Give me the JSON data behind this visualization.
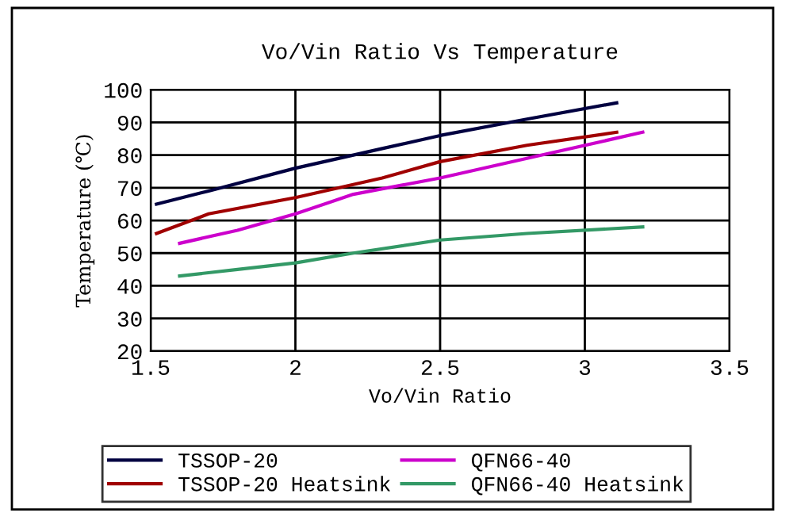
{
  "chart_data": {
    "type": "line",
    "title": "Vo/Vin Ratio Vs Temperature",
    "xlabel": "Vo/Vin Ratio",
    "ylabel": "Temperature (℃)",
    "xlim": [
      1.5,
      3.5
    ],
    "xticks": [
      {
        "value": 1.5,
        "label": "1.5"
      },
      2,
      {
        "value": 2.5,
        "label": "2.5"
      },
      3,
      {
        "value": 3.5,
        "label": "3.5"
      }
    ],
    "ylim": [
      20,
      100
    ],
    "yticks": [
      20,
      30,
      40,
      50,
      60,
      70,
      80,
      90,
      100
    ],
    "grid": true,
    "legend": "bottom",
    "marker": "none",
    "line_style": "solid",
    "series": [
      {
        "name": "TSSOP-20",
        "color": "#000040",
        "x": [
          1.52,
          1.7,
          2.0,
          2.3,
          2.5,
          2.8,
          3.11
        ],
        "values": [
          65,
          69,
          76,
          82,
          86,
          91,
          96
        ]
      },
      {
        "name": "TSSOP-20 Heatsink",
        "color": "#a00000",
        "x": [
          1.52,
          1.7,
          2.0,
          2.3,
          2.5,
          2.8,
          3.11
        ],
        "values": [
          56,
          62,
          67,
          73,
          78,
          83,
          87
        ]
      },
      {
        "name": "QFN66-40",
        "color": "#cc00cc",
        "x": [
          1.6,
          1.8,
          2.0,
          2.2,
          2.5,
          2.8,
          3.2
        ],
        "values": [
          53,
          57,
          62,
          68,
          73,
          79,
          87
        ]
      },
      {
        "name": "QFN66-40 Heatsink",
        "color": "#339966",
        "x": [
          1.6,
          1.8,
          2.0,
          2.2,
          2.5,
          2.8,
          3.2
        ],
        "values": [
          43,
          45,
          47,
          50,
          54,
          56,
          58
        ]
      }
    ]
  }
}
